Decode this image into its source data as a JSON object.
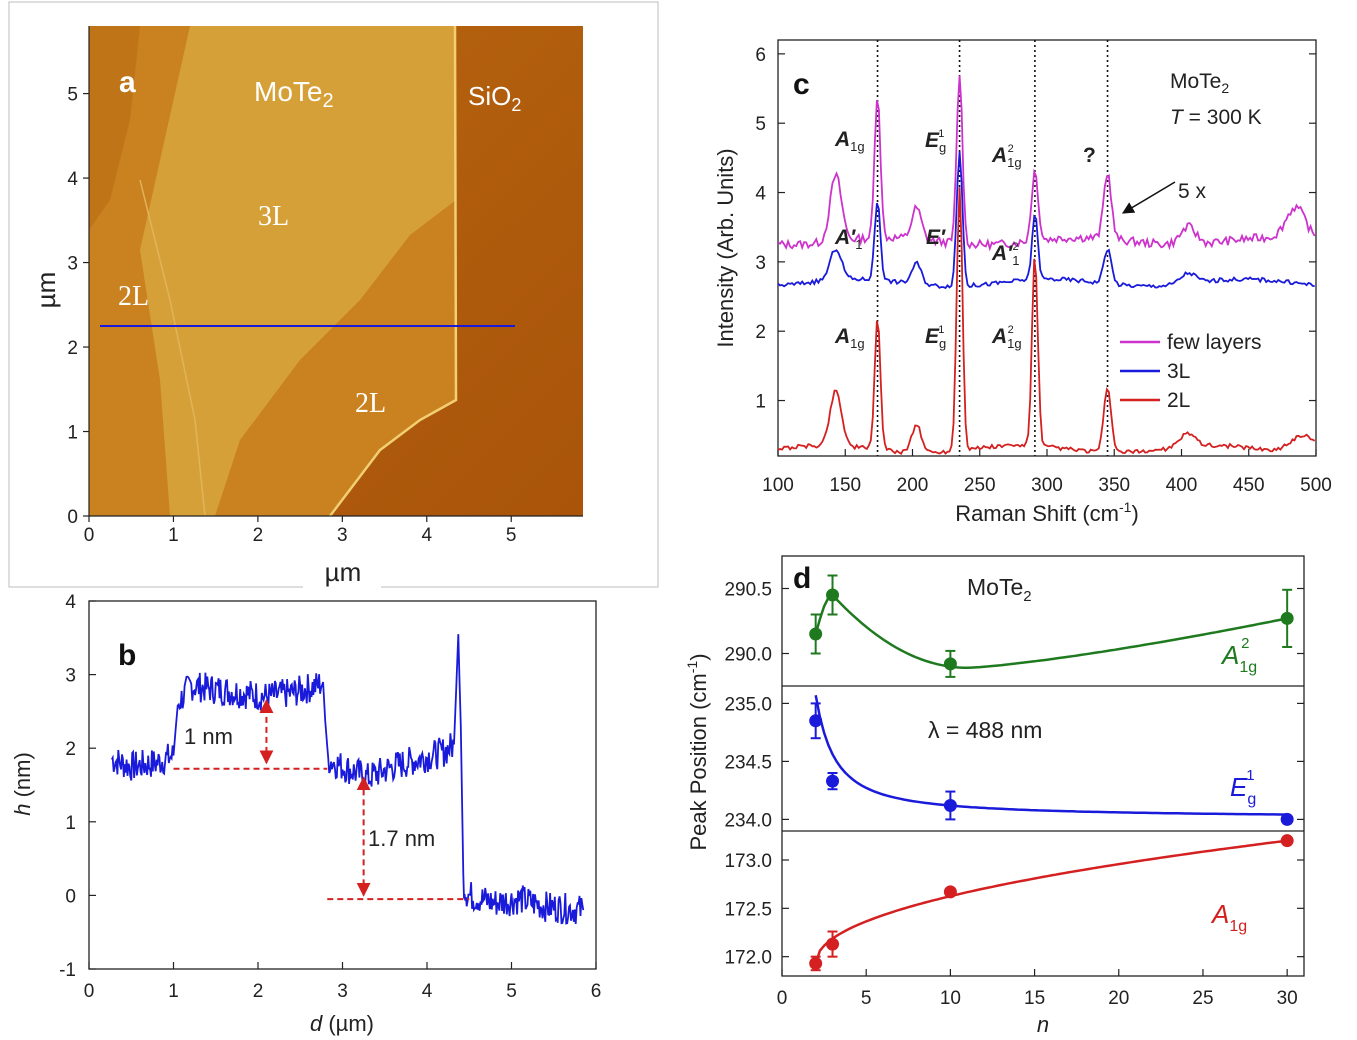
{
  "panel_labels": {
    "a": "a",
    "b": "b",
    "c": "c",
    "d": "d"
  },
  "panel_a": {
    "image_labels": {
      "material": "MoTe2",
      "substrate": "SiO2",
      "three_layer": "3L",
      "two_layer_left": "2L",
      "two_layer_right": "2L"
    },
    "x_unit": "µm",
    "y_unit": "µm",
    "x_ticks": [
      "0",
      "1",
      "2",
      "3",
      "4",
      "5"
    ],
    "y_ticks": [
      "0",
      "1",
      "2",
      "3",
      "4",
      "5"
    ],
    "colors": {
      "sio2": "#b15b08",
      "layer2": "#c9821f",
      "layer3": "#d8a33a",
      "scan_line": "#1a1adb"
    }
  },
  "chart_data": [
    {
      "panel": "b",
      "type": "line",
      "xlabel": "d (µm)",
      "ylabel": "h (nm)",
      "xlim": [
        0,
        6
      ],
      "ylim": [
        -1,
        4
      ],
      "x_ticks": [
        "0",
        "1",
        "2",
        "3",
        "4",
        "5",
        "6"
      ],
      "y_ticks": [
        "-1",
        "0",
        "1",
        "2",
        "3",
        "4"
      ],
      "series": [
        {
          "color": "#1a1adb",
          "x": [
            0.27,
            0.5,
            0.8,
            1.0,
            1.05,
            1.2,
            1.5,
            1.8,
            2.1,
            2.4,
            2.7,
            2.77,
            2.82,
            3.0,
            3.3,
            3.6,
            3.9,
            4.2,
            4.32,
            4.37,
            4.4,
            4.43,
            4.46,
            4.5,
            4.8,
            5.1,
            5.4,
            5.85
          ],
          "y": [
            1.85,
            1.75,
            1.8,
            1.9,
            2.6,
            2.85,
            2.8,
            2.75,
            2.7,
            2.75,
            2.85,
            2.9,
            1.85,
            1.75,
            1.6,
            1.75,
            1.85,
            1.95,
            2.05,
            3.55,
            2.3,
            0.2,
            0.05,
            0.0,
            -0.1,
            -0.05,
            -0.15,
            -0.2
          ]
        }
      ],
      "annotations": [
        "1 nm",
        "1.7 nm"
      ]
    },
    {
      "panel": "c",
      "type": "line",
      "xlabel": "Raman Shift (cm⁻¹)",
      "ylabel": "Intensity (Arb. Units)",
      "xlim": [
        100,
        500
      ],
      "ylim": [
        0.2,
        6.2
      ],
      "x_ticks": [
        "100",
        "150",
        "200",
        "250",
        "300",
        "350",
        "400",
        "450",
        "500"
      ],
      "y_ticks": [
        "1",
        "2",
        "3",
        "4",
        "5",
        "6"
      ],
      "vlines": [
        174,
        235,
        291,
        345
      ],
      "legend_position": "bottom-right",
      "legend_title": "MoTe2",
      "legend_subtitle": "T = 300 K",
      "arrow_label": "5 x",
      "question_label": "?",
      "series": [
        {
          "name": "few layers",
          "color": "#cc33cc",
          "baseline": 3.3,
          "offset": 3.4,
          "peaks": [
            [
              143,
              0.95,
              6
            ],
            [
              174,
              2.1,
              3
            ],
            [
              203,
              0.45,
              5
            ],
            [
              235,
              2.45,
              3
            ],
            [
              291,
              1.0,
              3.5
            ],
            [
              345,
              0.95,
              4
            ],
            [
              405,
              0.25,
              8
            ],
            [
              485,
              0.45,
              10
            ]
          ]
        },
        {
          "name": "3L",
          "color": "#1a1adb",
          "baseline": 2.7,
          "offset": 2.7,
          "peaks": [
            [
              143,
              0.45,
              6
            ],
            [
              174,
              1.15,
              3
            ],
            [
              203,
              0.3,
              5
            ],
            [
              235,
              1.95,
              3
            ],
            [
              291,
              0.95,
              3
            ],
            [
              345,
              0.5,
              4
            ],
            [
              405,
              0.15,
              8
            ]
          ]
        },
        {
          "name": "2L",
          "color": "#d42020",
          "baseline": 0.3,
          "offset": 0.3,
          "peaks": [
            [
              143,
              0.8,
              6
            ],
            [
              174,
              1.9,
              3
            ],
            [
              203,
              0.4,
              5
            ],
            [
              235,
              3.8,
              3
            ],
            [
              291,
              2.75,
              3
            ],
            [
              345,
              0.9,
              4
            ],
            [
              405,
              0.2,
              8
            ],
            [
              490,
              0.25,
              12
            ]
          ]
        }
      ],
      "peak_labels": {
        "few": [
          "A1g",
          "Eg1",
          "A1g2",
          "?"
        ],
        "three": [
          "A′1",
          "E′",
          "A′12"
        ],
        "two": [
          "A1g",
          "Eg1",
          "A1g2"
        ]
      }
    },
    {
      "panel": "d",
      "type": "scatter",
      "xlabel": "n",
      "ylabel": "Peak Position (cm⁻¹)",
      "xlim": [
        0,
        31
      ],
      "x_ticks": [
        "0",
        "5",
        "10",
        "15",
        "20",
        "25",
        "30"
      ],
      "title_text": "MoTe2",
      "wavelength_label": "λ = 488 nm",
      "subpanels": [
        {
          "name": "A1g2",
          "color": "#1f7a1f",
          "ylim": [
            289.75,
            290.75
          ],
          "y_ticks": [
            "290.0",
            "290.5"
          ],
          "x": [
            2,
            3,
            10,
            30
          ],
          "y": [
            290.15,
            290.45,
            289.92,
            290.27
          ],
          "err": [
            0.15,
            0.15,
            0.1,
            0.22
          ]
        },
        {
          "name": "Eg1",
          "color": "#1a1adb",
          "ylim": [
            233.9,
            235.15
          ],
          "y_ticks": [
            "234.0",
            "234.5",
            "235.0"
          ],
          "x": [
            2,
            3,
            10,
            30
          ],
          "y": [
            234.85,
            234.33,
            234.12,
            234.0
          ],
          "err": [
            0.15,
            0.07,
            0.12,
            0.0
          ]
        },
        {
          "name": "A1g",
          "color": "#d42020",
          "ylim": [
            171.8,
            173.3
          ],
          "y_ticks": [
            "172.0",
            "172.5",
            "173.0"
          ],
          "x": [
            2,
            3,
            10,
            30
          ],
          "y": [
            171.93,
            172.13,
            172.67,
            173.2
          ],
          "err": [
            0.07,
            0.13,
            0.0,
            0.0
          ]
        }
      ]
    }
  ]
}
